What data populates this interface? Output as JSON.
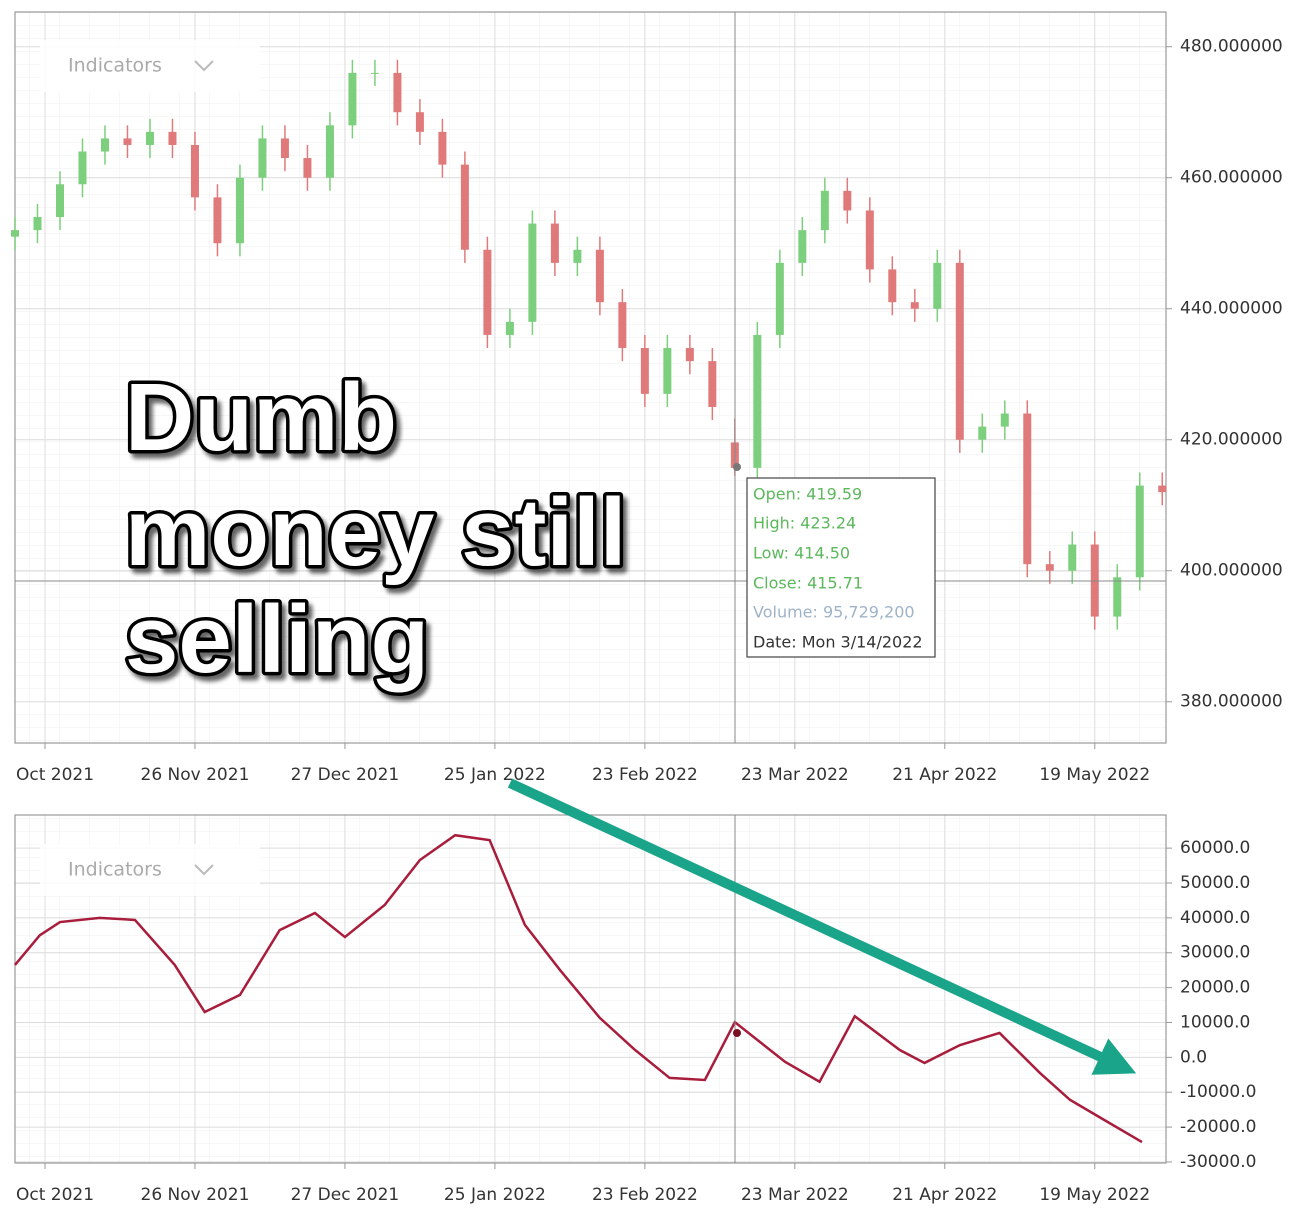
{
  "chart_data": [
    {
      "type": "candlestick",
      "menu_label": "Indicators",
      "up_color": "#7ccf7c",
      "down_color": "#e07a7a",
      "x": [
        0,
        3,
        6,
        9,
        12,
        15,
        18,
        21,
        24,
        27,
        30,
        33,
        36,
        39,
        42,
        45,
        48,
        51,
        54,
        57,
        60,
        63,
        66,
        69,
        72,
        75,
        78,
        81,
        84,
        87,
        90,
        93,
        96,
        99,
        102,
        105,
        108,
        111,
        114,
        117,
        120,
        123,
        126,
        129,
        132,
        135,
        138,
        141,
        144,
        147,
        150,
        153
      ],
      "open": [
        451,
        452,
        454,
        459,
        464,
        466,
        465,
        467,
        465,
        457,
        450,
        460,
        466,
        463,
        460,
        468,
        476,
        476,
        470,
        467,
        462,
        449,
        436,
        438,
        453,
        447,
        449,
        441,
        434,
        427,
        434,
        432,
        419.59,
        415.71,
        436,
        447,
        452,
        458,
        455,
        446,
        441,
        440,
        447,
        420,
        422,
        424,
        401,
        400,
        404,
        393,
        399,
        413
      ],
      "high": [
        454,
        456,
        461,
        466,
        468,
        468,
        469,
        469,
        467,
        459,
        462,
        468,
        468,
        465,
        470,
        478,
        478,
        478,
        472,
        469,
        464,
        451,
        440,
        455,
        455,
        451,
        451,
        443,
        436,
        436,
        436,
        434,
        423.24,
        438,
        449,
        454,
        460,
        460,
        457,
        448,
        443,
        449,
        449,
        424,
        426,
        426,
        403,
        406,
        406,
        401,
        415,
        415
      ],
      "low": [
        449,
        450,
        452,
        457,
        462,
        463,
        463,
        463,
        455,
        448,
        448,
        458,
        461,
        458,
        458,
        466,
        474,
        468,
        465,
        460,
        447,
        434,
        434,
        436,
        445,
        445,
        439,
        432,
        425,
        425,
        430,
        423,
        414.5,
        413.7,
        434,
        445,
        450,
        453,
        444,
        439,
        438,
        438,
        418,
        418,
        420,
        399,
        398,
        398,
        391,
        391,
        397,
        410
      ],
      "close": [
        452,
        454,
        459,
        464,
        466,
        465,
        467,
        465,
        457,
        450,
        460,
        466,
        463,
        460,
        468,
        476,
        476,
        470,
        467,
        462,
        449,
        436,
        438,
        453,
        447,
        449,
        441,
        434,
        427,
        434,
        432,
        425,
        415.71,
        436,
        447,
        452,
        458,
        455,
        446,
        441,
        440,
        447,
        420,
        422,
        424,
        401,
        400,
        404,
        393,
        399,
        413,
        412
      ],
      "xlim": [
        0,
        153.5
      ],
      "xticks": [
        {
          "value": 4,
          "label": "Oct 2021"
        },
        {
          "value": 24,
          "label": "26 Nov 2021"
        },
        {
          "value": 44,
          "label": "27 Dec 2021"
        },
        {
          "value": 64,
          "label": "25 Jan 2022"
        },
        {
          "value": 84,
          "label": "23 Feb 2022"
        },
        {
          "value": 104,
          "label": "23 Mar 2022"
        },
        {
          "value": 124,
          "label": "21 Apr 2022"
        },
        {
          "value": 144,
          "label": "19 May 2022"
        }
      ],
      "ylim": [
        373.7,
        485.3
      ],
      "yticks": [
        {
          "value": 380,
          "label": "380.000000"
        },
        {
          "value": 400,
          "label": "400.000000"
        },
        {
          "value": 420,
          "label": "420.000000"
        },
        {
          "value": 440,
          "label": "440.000000"
        },
        {
          "value": 460,
          "label": "460.000000"
        },
        {
          "value": 480,
          "label": "480.000000"
        }
      ],
      "grid": true,
      "tooltip": {
        "open": "Open: 419.59",
        "high": "High: 423.24",
        "low": "Low: 414.50",
        "close": "Close: 415.71",
        "volume": "Volume: 95,729,200",
        "date": "Date: Mon 3/14/2022"
      },
      "annotation": [
        "Dumb",
        "money still",
        "selling"
      ]
    },
    {
      "type": "line",
      "menu_label": "Indicators",
      "color": "#a81d3b",
      "x": [
        0,
        3.3,
        6,
        11.3,
        16,
        21.3,
        25.3,
        30,
        35.3,
        40,
        44,
        49.3,
        54,
        58.7,
        63.3,
        68,
        72.7,
        78,
        82.7,
        87.3,
        92,
        96,
        102.7,
        107.3,
        112,
        118,
        121.3,
        126,
        131.3,
        136.7,
        140.7,
        145.3,
        150.3
      ],
      "values": [
        26500,
        35000,
        38800,
        40000,
        39400,
        26500,
        13000,
        17900,
        36500,
        41400,
        34500,
        43700,
        56600,
        63700,
        62300,
        38000,
        25000,
        11300,
        2100,
        -5900,
        -6500,
        10100,
        -1300,
        -7000,
        11800,
        2100,
        -1600,
        3500,
        7000,
        -4500,
        -12200,
        -18000,
        -24300
      ],
      "xlim": [
        0,
        153.5
      ],
      "xticks": [
        {
          "value": 4,
          "label": "Oct 2021"
        },
        {
          "value": 24,
          "label": "26 Nov 2021"
        },
        {
          "value": 44,
          "label": "27 Dec 2021"
        },
        {
          "value": 64,
          "label": "25 Jan 2022"
        },
        {
          "value": 84,
          "label": "23 Feb 2022"
        },
        {
          "value": 104,
          "label": "23 Mar 2022"
        },
        {
          "value": 124,
          "label": "21 Apr 2022"
        },
        {
          "value": 144,
          "label": "19 May 2022"
        }
      ],
      "ylim": [
        -30300,
        69500
      ],
      "yticks": [
        {
          "value": -30000,
          "label": "-30000.0"
        },
        {
          "value": -20000,
          "label": "-20000.0"
        },
        {
          "value": -10000,
          "label": "-10000.0"
        },
        {
          "value": 0,
          "label": "0.0"
        },
        {
          "value": 10000,
          "label": "10000.0"
        },
        {
          "value": 20000,
          "label": "20000.0"
        },
        {
          "value": 30000,
          "label": "30000.0"
        },
        {
          "value": 40000,
          "label": "40000.0"
        },
        {
          "value": 50000,
          "label": "50000.0"
        },
        {
          "value": 60000,
          "label": "60000.0"
        }
      ],
      "grid": true
    }
  ]
}
